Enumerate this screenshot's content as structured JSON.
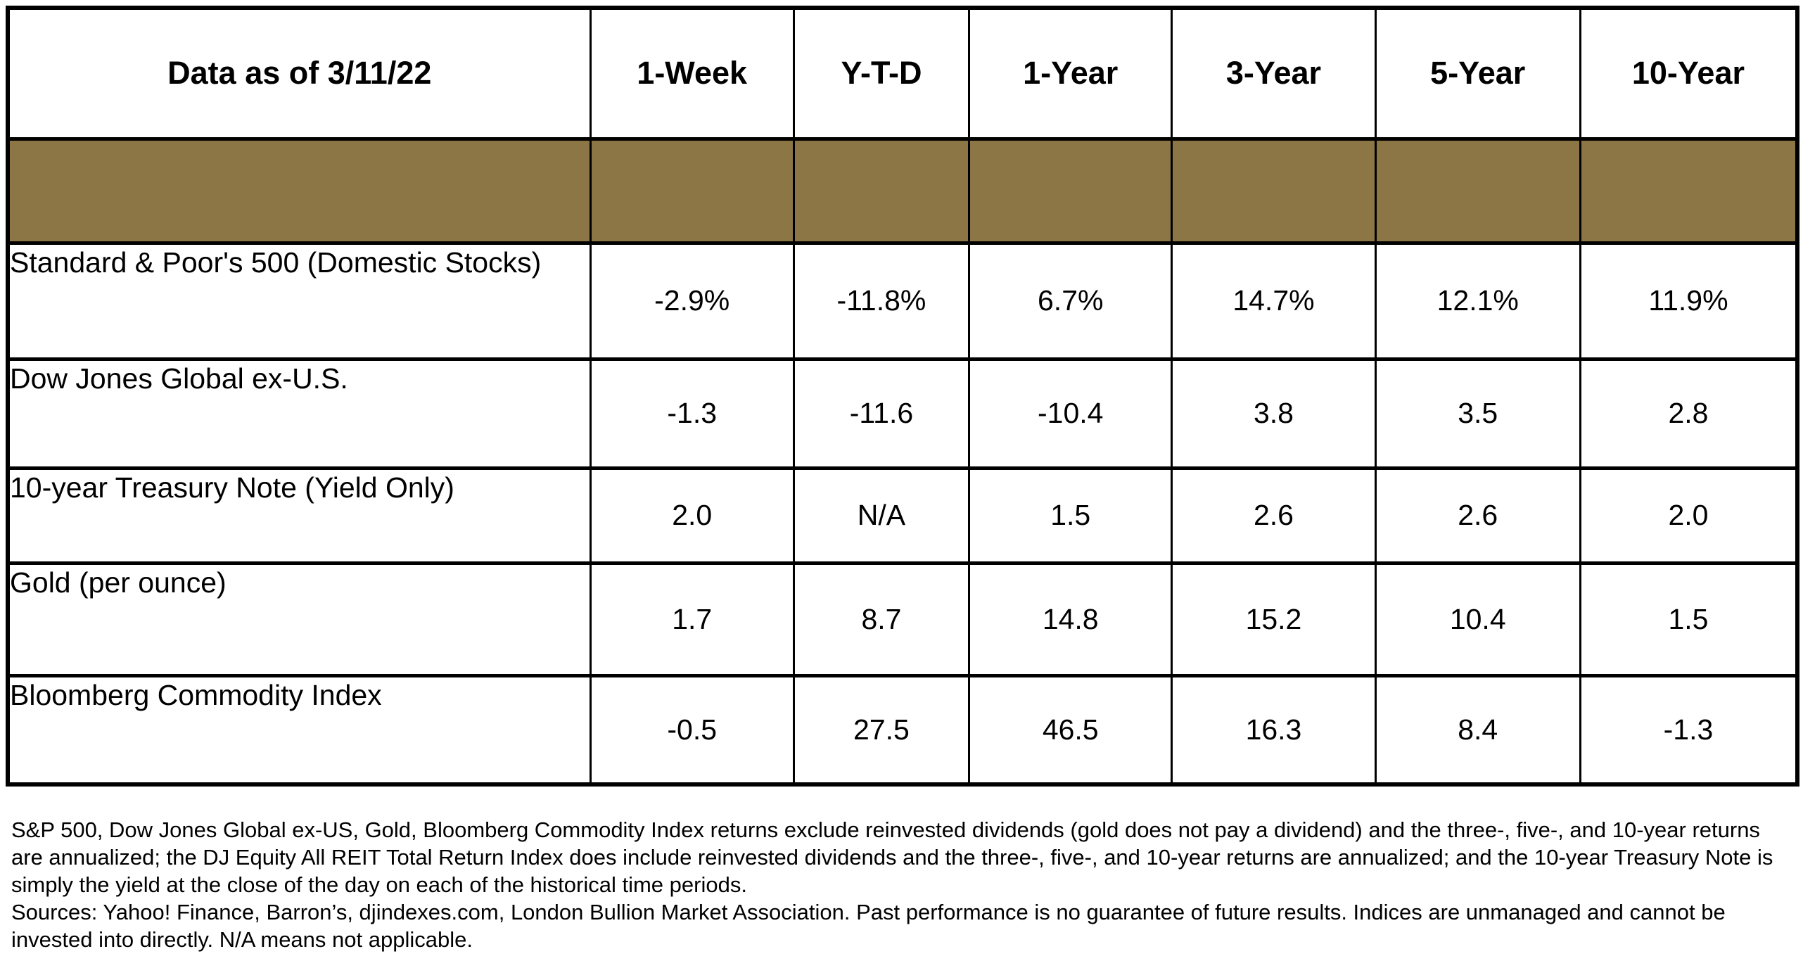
{
  "chart_data": {
    "type": "table",
    "title": "Data as of 3/11/22",
    "columns": [
      "1-Week",
      "Y-T-D",
      "1-Year",
      "3-Year",
      "5-Year",
      "10-Year"
    ],
    "rows": [
      {
        "label": "Standard & Poor's 500 (Domestic Stocks)",
        "values": [
          "-2.9%",
          "-11.8%",
          "6.7%",
          "14.7%",
          "12.1%",
          "11.9%"
        ]
      },
      {
        "label": "Dow Jones Global ex-U.S.",
        "values": [
          "-1.3",
          "-11.6",
          "-10.4",
          "3.8",
          "3.5",
          "2.8"
        ]
      },
      {
        "label": "10-year Treasury Note (Yield Only)",
        "values": [
          "2.0",
          "N/A",
          "1.5",
          "2.6",
          "2.6",
          "2.0"
        ]
      },
      {
        "label": "Gold (per ounce)",
        "values": [
          "1.7",
          "8.7",
          "14.8",
          "15.2",
          "10.4",
          "1.5"
        ]
      },
      {
        "label": "Bloomberg Commodity Index",
        "values": [
          "-0.5",
          "27.5",
          "46.5",
          "16.3",
          "8.4",
          "-1.3"
        ]
      }
    ],
    "layout_hints": {
      "accent_row_color": "#8C7646",
      "border_color": "#000000",
      "grid": true
    }
  },
  "footnotes": {
    "methodology": "S&P 500, Dow Jones Global ex-US, Gold, Bloomberg Commodity Index returns exclude reinvested dividends (gold does not pay a dividend) and the three-, five-, and 10-year returns are annualized; the DJ Equity All REIT Total Return Index does include reinvested dividends and the three-, five-, and 10-year returns are annualized; and the 10-year Treasury Note is simply the yield at the close of the day on each of the historical time periods.",
    "sources": "Sources: Yahoo! Finance, Barron’s, djindexes.com, London Bullion Market Association. Past performance is no guarantee of future results. Indices are unmanaged and cannot be invested into directly. N/A means not applicable."
  }
}
